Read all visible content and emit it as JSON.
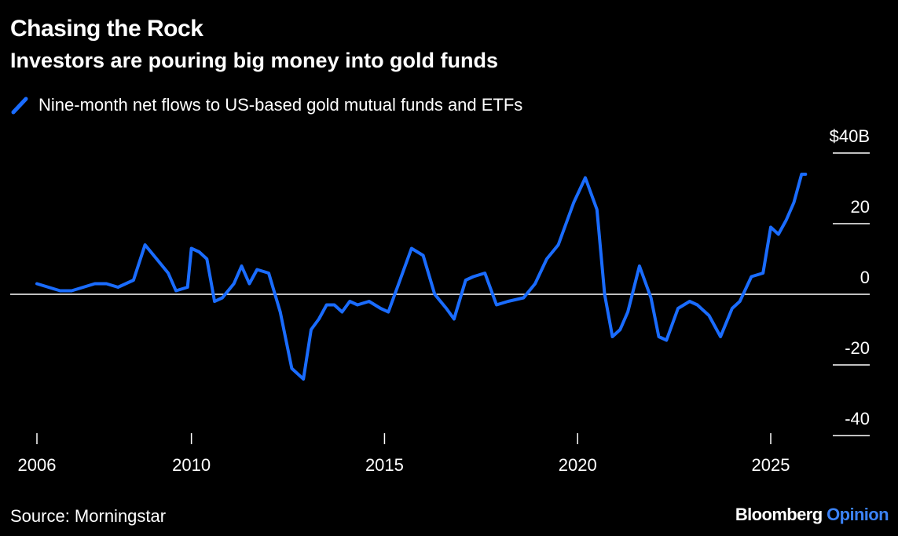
{
  "header": {
    "title": "Chasing the Rock",
    "subtitle": "Investors are pouring big money into gold funds"
  },
  "legend": {
    "label": "Nine-month net flows to US-based gold mutual funds and ETFs"
  },
  "footer": {
    "source": "Source: Morningstar",
    "brand_main": "Bloomberg",
    "brand_sub": "Opinion"
  },
  "colors": {
    "line": "#1a6cff",
    "background": "#000000",
    "text": "#ffffff"
  },
  "chart_data": {
    "type": "line",
    "title": "Chasing the Rock",
    "subtitle": "Investors are pouring big money into gold funds",
    "series": [
      {
        "name": "Nine-month net flows to US-based gold mutual funds and ETFs",
        "x": [
          2006.0,
          2006.3,
          2006.6,
          2006.9,
          2007.2,
          2007.5,
          2007.8,
          2008.1,
          2008.5,
          2008.8,
          2009.1,
          2009.4,
          2009.6,
          2009.9,
          2010.0,
          2010.2,
          2010.4,
          2010.6,
          2010.8,
          2011.1,
          2011.3,
          2011.5,
          2011.7,
          2012.0,
          2012.3,
          2012.6,
          2012.9,
          2013.1,
          2013.3,
          2013.5,
          2013.7,
          2013.9,
          2014.1,
          2014.3,
          2014.6,
          2014.9,
          2015.1,
          2015.4,
          2015.7,
          2016.0,
          2016.3,
          2016.6,
          2016.8,
          2017.1,
          2017.3,
          2017.6,
          2017.9,
          2018.2,
          2018.6,
          2018.9,
          2019.2,
          2019.5,
          2019.9,
          2020.2,
          2020.5,
          2020.7,
          2020.9,
          2021.1,
          2021.3,
          2021.6,
          2021.9,
          2022.1,
          2022.3,
          2022.6,
          2022.9,
          2023.1,
          2023.4,
          2023.7,
          2024.0,
          2024.2,
          2024.5,
          2024.8,
          2025.0,
          2025.2,
          2025.4,
          2025.6,
          2025.8,
          2025.9
        ],
        "values": [
          3,
          2,
          1,
          1,
          2,
          3,
          3,
          2,
          4,
          14,
          10,
          6,
          1,
          2,
          13,
          12,
          10,
          -2,
          -1,
          3,
          8,
          3,
          7,
          6,
          -5,
          -21,
          -24,
          -10,
          -7,
          -3,
          -3,
          -5,
          -2,
          -3,
          -2,
          -4,
          -5,
          4,
          13,
          11,
          0,
          -4,
          -7,
          4,
          5,
          6,
          -3,
          -2,
          -1,
          3,
          10,
          14,
          26,
          33,
          24,
          0,
          -12,
          -10,
          -5,
          8,
          -1,
          -12,
          -13,
          -4,
          -2,
          -3,
          -6,
          -12,
          -4,
          -2,
          5,
          6,
          19,
          17,
          21,
          26,
          34,
          34
        ]
      }
    ],
    "xticks": [
      2006,
      2010,
      2015,
      2020,
      2025
    ],
    "xtick_labels": [
      "2006",
      "2010",
      "2015",
      "2020",
      "2025"
    ],
    "yticks": [
      40,
      20,
      0,
      -20,
      -40
    ],
    "ytick_labels": [
      "$40B",
      "20",
      "0",
      "-20",
      "-40"
    ],
    "xlim": [
      2006,
      2026.2
    ],
    "ylim": [
      -40,
      40
    ],
    "xlabel": "",
    "ylabel": "",
    "zero_line": true,
    "grid": false
  }
}
